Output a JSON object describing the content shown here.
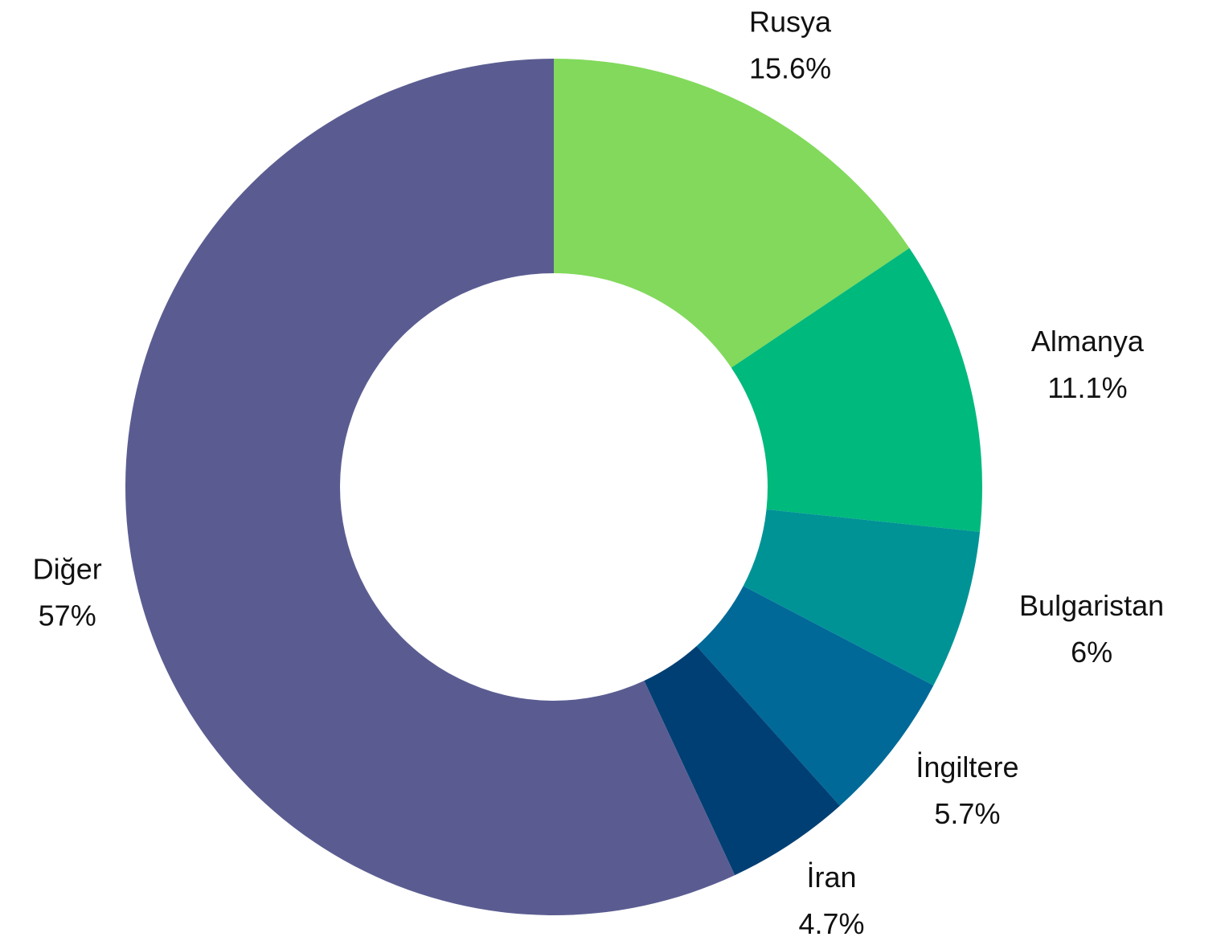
{
  "chart_data": {
    "type": "donut",
    "categories": [
      "Rusya",
      "Almanya",
      "Bulgaristan",
      "İngiltere",
      "İran",
      "Diğer"
    ],
    "values": [
      15.6,
      11.1,
      6,
      5.7,
      4.7,
      57
    ],
    "value_labels": [
      "15.6%",
      "11.1%",
      "6%",
      "5.7%",
      "4.7%",
      "57%"
    ],
    "colors": [
      "#82d95b",
      "#00b97d",
      "#009396",
      "#006998",
      "#003f74",
      "#5a5c91"
    ]
  }
}
